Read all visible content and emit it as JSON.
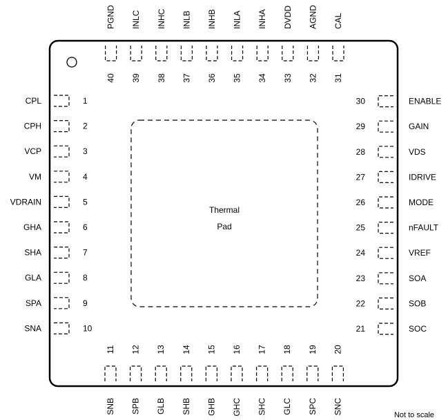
{
  "package_label": {
    "thermal_pad_line1": "Thermal",
    "thermal_pad_line2": "Pad",
    "not_to_scale": "Not to scale"
  },
  "pins": {
    "left": [
      {
        "number": "1",
        "name": "CPL"
      },
      {
        "number": "2",
        "name": "CPH"
      },
      {
        "number": "3",
        "name": "VCP"
      },
      {
        "number": "4",
        "name": "VM"
      },
      {
        "number": "5",
        "name": "VDRAIN"
      },
      {
        "number": "6",
        "name": "GHA"
      },
      {
        "number": "7",
        "name": "SHA"
      },
      {
        "number": "8",
        "name": "GLA"
      },
      {
        "number": "9",
        "name": "SPA"
      },
      {
        "number": "10",
        "name": "SNA"
      }
    ],
    "bottom": [
      {
        "number": "11",
        "name": "SNB"
      },
      {
        "number": "12",
        "name": "SPB"
      },
      {
        "number": "13",
        "name": "GLB"
      },
      {
        "number": "14",
        "name": "SHB"
      },
      {
        "number": "15",
        "name": "GHB"
      },
      {
        "number": "16",
        "name": "GHC"
      },
      {
        "number": "17",
        "name": "SHC"
      },
      {
        "number": "18",
        "name": "GLC"
      },
      {
        "number": "19",
        "name": "SPC"
      },
      {
        "number": "20",
        "name": "SNC"
      }
    ],
    "right": [
      {
        "number": "21",
        "name": "SOC"
      },
      {
        "number": "22",
        "name": "SOB"
      },
      {
        "number": "23",
        "name": "SOA"
      },
      {
        "number": "24",
        "name": "VREF"
      },
      {
        "number": "25",
        "name": "nFAULT"
      },
      {
        "number": "26",
        "name": "MODE"
      },
      {
        "number": "27",
        "name": "IDRIVE"
      },
      {
        "number": "28",
        "name": "VDS"
      },
      {
        "number": "29",
        "name": "GAIN"
      },
      {
        "number": "30",
        "name": "ENABLE"
      }
    ],
    "top": [
      {
        "number": "31",
        "name": "CAL"
      },
      {
        "number": "32",
        "name": "AGND"
      },
      {
        "number": "33",
        "name": "DVDD"
      },
      {
        "number": "34",
        "name": "INHA"
      },
      {
        "number": "35",
        "name": "INLA"
      },
      {
        "number": "36",
        "name": "INHB"
      },
      {
        "number": "37",
        "name": "INLB"
      },
      {
        "number": "38",
        "name": "INHC"
      },
      {
        "number": "39",
        "name": "INLC"
      },
      {
        "number": "40",
        "name": "PGND"
      }
    ]
  }
}
